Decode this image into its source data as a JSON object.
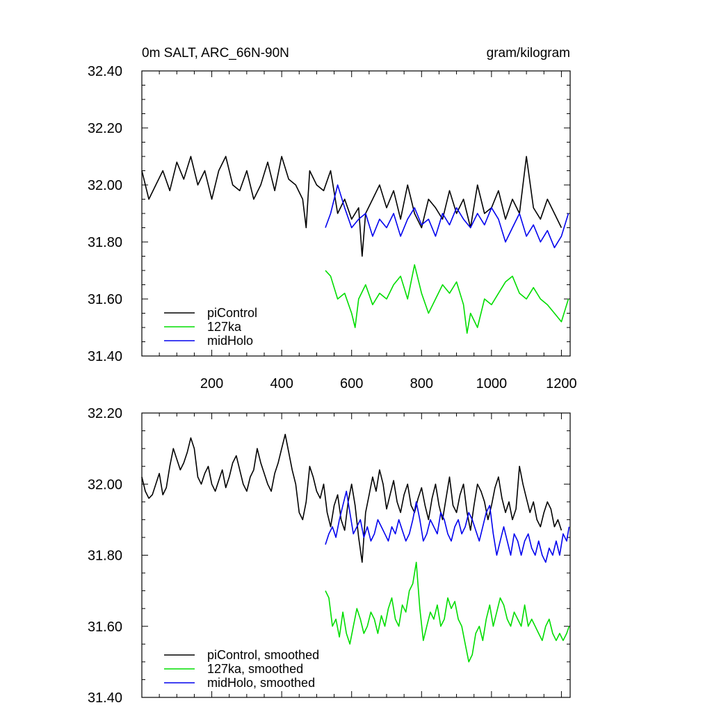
{
  "chart_data": [
    {
      "type": "line",
      "title": "0m SALT, ARC_66N-90N",
      "units": "gram/kilogram",
      "xlim": [
        0,
        1225
      ],
      "ylim": [
        31.4,
        32.4
      ],
      "x_ticks": [
        200,
        400,
        600,
        800,
        1000,
        1200
      ],
      "y_ticks": [
        31.4,
        31.6,
        31.8,
        32.0,
        32.2,
        32.4
      ],
      "x_tick_labels": [
        "200",
        "400",
        "600",
        "800",
        "1000",
        "1200"
      ],
      "y_tick_labels": [
        "31.40",
        "31.60",
        "31.80",
        "32.00",
        "32.20",
        "32.40"
      ],
      "legend_position": "bottom-left",
      "series": [
        {
          "name": "piControl",
          "color": "#000000",
          "x": [
            0,
            20,
            40,
            60,
            80,
            100,
            120,
            140,
            160,
            180,
            200,
            220,
            240,
            260,
            280,
            300,
            320,
            340,
            360,
            380,
            400,
            420,
            440,
            460,
            470,
            480,
            500,
            520,
            540,
            560,
            580,
            600,
            620,
            630,
            640,
            660,
            680,
            700,
            720,
            740,
            760,
            780,
            800,
            820,
            840,
            860,
            880,
            900,
            920,
            940,
            960,
            980,
            1000,
            1020,
            1040,
            1060,
            1080,
            1100,
            1120,
            1140,
            1160,
            1180,
            1200
          ],
          "y": [
            32.05,
            31.95,
            32.0,
            32.05,
            31.98,
            32.08,
            32.02,
            32.1,
            32.0,
            32.05,
            31.95,
            32.05,
            32.1,
            32.0,
            31.98,
            32.05,
            31.95,
            32.0,
            32.08,
            31.98,
            32.1,
            32.02,
            32.0,
            31.95,
            31.85,
            32.05,
            32.0,
            31.98,
            32.05,
            31.9,
            31.95,
            31.88,
            31.92,
            31.75,
            31.9,
            31.95,
            32.0,
            31.92,
            31.98,
            31.88,
            32.0,
            31.9,
            31.85,
            31.95,
            31.92,
            31.88,
            31.98,
            31.9,
            31.95,
            31.85,
            32.0,
            31.9,
            31.92,
            31.98,
            31.88,
            31.95,
            31.9,
            32.1,
            31.92,
            31.88,
            31.95,
            31.9,
            31.85
          ]
        },
        {
          "name": "127ka",
          "color": "#00dd00",
          "x": [
            525,
            540,
            560,
            580,
            600,
            610,
            620,
            640,
            660,
            680,
            700,
            720,
            740,
            760,
            780,
            800,
            820,
            840,
            860,
            880,
            900,
            920,
            930,
            940,
            960,
            980,
            1000,
            1020,
            1040,
            1060,
            1080,
            1100,
            1120,
            1140,
            1160,
            1180,
            1200,
            1220
          ],
          "y": [
            31.7,
            31.68,
            31.6,
            31.62,
            31.55,
            31.5,
            31.6,
            31.65,
            31.58,
            31.62,
            31.6,
            31.65,
            31.68,
            31.6,
            31.72,
            31.62,
            31.55,
            31.6,
            31.65,
            31.62,
            31.66,
            31.58,
            31.48,
            31.55,
            31.5,
            31.6,
            31.58,
            31.62,
            31.66,
            31.68,
            31.62,
            31.6,
            31.64,
            31.6,
            31.58,
            31.55,
            31.52,
            31.6
          ]
        },
        {
          "name": "midHolo",
          "color": "#0000ee",
          "x": [
            525,
            540,
            560,
            580,
            600,
            620,
            640,
            660,
            680,
            700,
            720,
            740,
            760,
            780,
            800,
            820,
            840,
            860,
            880,
            900,
            920,
            940,
            960,
            980,
            1000,
            1020,
            1040,
            1060,
            1080,
            1100,
            1120,
            1140,
            1160,
            1180,
            1200,
            1220
          ],
          "y": [
            31.85,
            31.9,
            32.0,
            31.92,
            31.85,
            31.88,
            31.9,
            31.82,
            31.88,
            31.85,
            31.9,
            31.82,
            31.88,
            31.92,
            31.86,
            31.88,
            31.82,
            31.9,
            31.86,
            31.92,
            31.88,
            31.85,
            31.9,
            31.86,
            31.92,
            31.88,
            31.8,
            31.85,
            31.9,
            31.82,
            31.86,
            31.8,
            31.84,
            31.78,
            31.82,
            31.9
          ]
        }
      ]
    },
    {
      "type": "line",
      "xlim": [
        0,
        1225
      ],
      "ylim": [
        31.4,
        32.2
      ],
      "x_ticks": [
        200,
        400,
        600,
        800,
        1000,
        1200
      ],
      "y_ticks": [
        31.4,
        31.6,
        31.8,
        32.0,
        32.2
      ],
      "y_tick_labels": [
        "31.40",
        "31.60",
        "31.80",
        "32.00",
        "32.20"
      ],
      "legend_position": "bottom-left",
      "series": [
        {
          "name": "piControl, smoothed",
          "color": "#000000",
          "x": [
            0,
            10,
            20,
            30,
            40,
            50,
            60,
            70,
            80,
            90,
            100,
            110,
            120,
            130,
            140,
            150,
            160,
            170,
            180,
            190,
            200,
            210,
            220,
            230,
            240,
            250,
            260,
            270,
            280,
            290,
            300,
            310,
            320,
            330,
            340,
            350,
            360,
            370,
            380,
            390,
            400,
            410,
            420,
            430,
            440,
            450,
            460,
            470,
            480,
            490,
            500,
            510,
            520,
            530,
            540,
            550,
            560,
            570,
            580,
            590,
            600,
            610,
            620,
            630,
            640,
            650,
            660,
            670,
            680,
            690,
            700,
            710,
            720,
            730,
            740,
            750,
            760,
            770,
            780,
            790,
            800,
            810,
            820,
            830,
            840,
            850,
            860,
            870,
            880,
            890,
            900,
            910,
            920,
            930,
            940,
            950,
            960,
            970,
            980,
            990,
            1000,
            1010,
            1020,
            1030,
            1040,
            1050,
            1060,
            1070,
            1080,
            1090,
            1100,
            1110,
            1120,
            1130,
            1140,
            1150,
            1160,
            1170,
            1180,
            1190,
            1200
          ],
          "y": [
            32.02,
            31.98,
            31.96,
            31.97,
            32.0,
            32.03,
            31.97,
            31.99,
            32.05,
            32.1,
            32.07,
            32.04,
            32.06,
            32.09,
            32.13,
            32.1,
            32.02,
            32.0,
            32.03,
            32.05,
            32.0,
            31.98,
            32.01,
            32.04,
            31.99,
            32.02,
            32.06,
            32.08,
            32.04,
            32.0,
            31.98,
            32.02,
            32.04,
            32.1,
            32.06,
            32.03,
            32.0,
            31.98,
            32.03,
            32.06,
            32.1,
            32.14,
            32.09,
            32.04,
            32.0,
            31.92,
            31.9,
            31.95,
            32.05,
            32.02,
            31.98,
            31.96,
            32.0,
            31.92,
            31.88,
            31.94,
            31.97,
            31.9,
            31.87,
            31.95,
            32.0,
            31.94,
            31.85,
            31.78,
            31.92,
            31.97,
            32.02,
            31.98,
            32.04,
            32.0,
            31.93,
            31.97,
            32.01,
            31.95,
            31.92,
            31.97,
            32.0,
            31.94,
            31.92,
            31.96,
            31.99,
            31.94,
            31.9,
            31.96,
            32.0,
            31.94,
            31.9,
            31.96,
            32.02,
            31.94,
            31.92,
            31.97,
            32.0,
            31.92,
            31.87,
            31.94,
            32.0,
            31.98,
            31.95,
            31.9,
            31.94,
            31.99,
            32.02,
            31.96,
            31.92,
            31.95,
            31.9,
            31.93,
            32.05,
            32.0,
            31.96,
            31.92,
            31.95,
            31.9,
            31.88,
            31.92,
            31.95,
            31.93,
            31.88,
            31.9,
            31.87
          ]
        },
        {
          "name": "127ka, smoothed",
          "color": "#00dd00",
          "x": [
            525,
            535,
            545,
            555,
            565,
            575,
            585,
            595,
            605,
            615,
            625,
            635,
            645,
            655,
            665,
            675,
            685,
            695,
            705,
            715,
            725,
            735,
            745,
            755,
            765,
            775,
            785,
            795,
            805,
            815,
            825,
            835,
            845,
            855,
            865,
            875,
            885,
            895,
            905,
            915,
            925,
            935,
            945,
            955,
            965,
            975,
            985,
            995,
            1005,
            1015,
            1025,
            1035,
            1045,
            1055,
            1065,
            1075,
            1085,
            1095,
            1105,
            1115,
            1125,
            1135,
            1145,
            1155,
            1165,
            1175,
            1185,
            1195,
            1205,
            1215,
            1222
          ],
          "y": [
            31.7,
            31.68,
            31.6,
            31.62,
            31.57,
            31.64,
            31.58,
            31.55,
            31.6,
            31.65,
            31.62,
            31.58,
            31.6,
            31.64,
            31.62,
            31.58,
            31.63,
            31.6,
            31.65,
            31.68,
            31.62,
            31.6,
            31.66,
            31.64,
            31.7,
            31.72,
            31.78,
            31.65,
            31.56,
            31.6,
            31.64,
            31.62,
            31.66,
            31.6,
            31.62,
            31.68,
            31.65,
            31.67,
            31.62,
            31.6,
            31.55,
            31.5,
            31.52,
            31.58,
            31.6,
            31.56,
            31.62,
            31.66,
            31.6,
            31.64,
            31.68,
            31.66,
            31.62,
            31.6,
            31.64,
            31.62,
            31.6,
            31.66,
            31.6,
            31.62,
            31.6,
            31.58,
            31.56,
            31.6,
            31.62,
            31.58,
            31.56,
            31.58,
            31.56,
            31.58,
            31.6
          ]
        },
        {
          "name": "midHolo, smoothed",
          "color": "#0000ee",
          "x": [
            525,
            535,
            545,
            555,
            565,
            575,
            585,
            595,
            605,
            615,
            625,
            635,
            645,
            655,
            665,
            675,
            685,
            695,
            705,
            715,
            725,
            735,
            745,
            755,
            765,
            775,
            785,
            795,
            805,
            815,
            825,
            835,
            845,
            855,
            865,
            875,
            885,
            895,
            905,
            915,
            925,
            935,
            945,
            955,
            965,
            975,
            985,
            995,
            1005,
            1015,
            1025,
            1035,
            1045,
            1055,
            1065,
            1075,
            1085,
            1095,
            1105,
            1115,
            1125,
            1135,
            1145,
            1155,
            1165,
            1175,
            1185,
            1195,
            1205,
            1215,
            1222
          ],
          "y": [
            31.83,
            31.86,
            31.88,
            31.85,
            31.9,
            31.94,
            31.98,
            31.92,
            31.86,
            31.88,
            31.9,
            31.85,
            31.88,
            31.84,
            31.86,
            31.9,
            31.88,
            31.86,
            31.84,
            31.88,
            31.86,
            31.9,
            31.87,
            31.84,
            31.86,
            31.9,
            31.95,
            31.9,
            31.84,
            31.86,
            31.9,
            31.88,
            31.86,
            31.92,
            31.9,
            31.86,
            31.84,
            31.88,
            31.9,
            31.86,
            31.88,
            31.92,
            31.9,
            31.87,
            31.84,
            31.88,
            31.92,
            31.94,
            31.86,
            31.8,
            31.84,
            31.88,
            31.84,
            31.8,
            31.86,
            31.84,
            31.8,
            31.84,
            31.86,
            31.82,
            31.8,
            31.84,
            31.8,
            31.78,
            31.82,
            31.8,
            31.84,
            31.8,
            31.86,
            31.84,
            31.88
          ]
        }
      ]
    }
  ]
}
